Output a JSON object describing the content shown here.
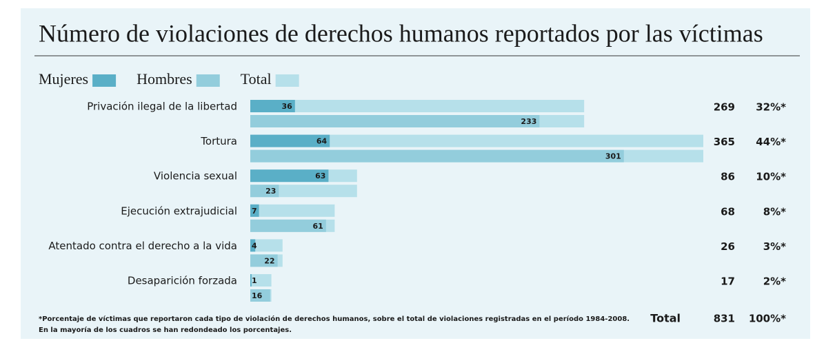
{
  "chart_data": {
    "type": "bar",
    "title": "Número de violaciones de derechos humanos reportados por las víctimas",
    "categories": [
      "Privación ilegal de la libertad",
      "Tortura",
      "Violencia sexual",
      "Ejecución extrajudicial",
      "Atentado contra el derecho a la vida",
      "Desaparición forzada"
    ],
    "series": [
      {
        "name": "Mujeres",
        "color": "#5aafc7",
        "values": [
          36,
          64,
          63,
          7,
          4,
          1
        ]
      },
      {
        "name": "Hombres",
        "color": "#93cddc",
        "values": [
          233,
          301,
          23,
          61,
          22,
          16
        ]
      },
      {
        "name": "Total",
        "color": "#b6e0ea",
        "values": [
          269,
          365,
          86,
          68,
          26,
          17
        ]
      }
    ],
    "percentages": {
      "values": [
        32,
        44,
        10,
        8,
        3,
        2
      ],
      "value_labels": [
        "32%*",
        "44%*",
        "10%*",
        "8%*",
        "3%*",
        "2%*"
      ]
    },
    "xlim": [
      0,
      365
    ],
    "grand_total": {
      "label": "Total",
      "value": 831,
      "percentage": {
        "value": 100,
        "label": "100%*"
      }
    },
    "footnotes": [
      "*Porcentaje de víctimas que reportaron cada tipo de violación de derechos humanos, sobre el total de violaciones registradas en el período 1984-2008.",
      "En la mayoría de los cuadros se han redondeado los porcentajes."
    ]
  }
}
